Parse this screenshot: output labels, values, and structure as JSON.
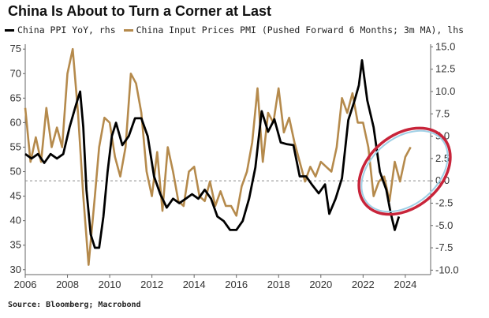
{
  "title": "China Is About to Turn a Corner at Last",
  "source": "Source: Bloomberg; Macrobond",
  "chart_data": {
    "type": "line",
    "title": "China Is About to Turn a Corner at Last",
    "x_ticks": [
      "2006",
      "2008",
      "2010",
      "2012",
      "2014",
      "2016",
      "2018",
      "2020",
      "2022",
      "2024"
    ],
    "xlim": [
      2006,
      2025.2
    ],
    "left_axis": {
      "ticks": [
        "75",
        "70",
        "65",
        "60",
        "55",
        "50",
        "45",
        "40",
        "35",
        "30"
      ],
      "ylim": [
        29,
        76
      ]
    },
    "right_axis": {
      "ticks": [
        "15.0",
        "12.5",
        "10.0",
        "7.5",
        "5.0",
        "2.5",
        "0.0",
        "-2.5",
        "-5.0",
        "-7.5",
        "-10.0"
      ],
      "ylim": [
        -10.5,
        15.3
      ]
    },
    "zero_line_right": 0.0,
    "grid": false,
    "legend_position": "top-left",
    "colors": {
      "ppi": "#000000",
      "pmi": "#b58a4c",
      "circle": "#c8243a",
      "circle_inner": "#9fd0e6"
    },
    "series": [
      {
        "name": "China PPI YoY, rhs",
        "axis": "right",
        "x": [
          2006.0,
          2006.3,
          2006.6,
          2006.9,
          2007.2,
          2007.5,
          2007.8,
          2008.1,
          2008.4,
          2008.6,
          2008.75,
          2008.9,
          2009.1,
          2009.3,
          2009.5,
          2009.7,
          2009.9,
          2010.1,
          2010.3,
          2010.6,
          2010.9,
          2011.2,
          2011.5,
          2011.8,
          2012.1,
          2012.4,
          2012.7,
          2013.0,
          2013.3,
          2013.6,
          2013.9,
          2014.2,
          2014.5,
          2014.8,
          2015.1,
          2015.4,
          2015.7,
          2016.0,
          2016.3,
          2016.6,
          2016.9,
          2017.2,
          2017.5,
          2017.8,
          2018.1,
          2018.4,
          2018.7,
          2019.0,
          2019.3,
          2019.6,
          2019.9,
          2020.2,
          2020.4,
          2020.7,
          2021.0,
          2021.3,
          2021.6,
          2021.8,
          2021.95,
          2022.2,
          2022.5,
          2022.8,
          2023.1,
          2023.3,
          2023.5,
          2023.7
        ],
        "y": [
          3.0,
          2.5,
          3.0,
          2.0,
          3.0,
          2.5,
          3.0,
          6.0,
          8.5,
          10.0,
          6.0,
          -1.0,
          -6.0,
          -7.5,
          -7.5,
          -4.0,
          1.0,
          5.0,
          6.5,
          4.0,
          5.0,
          7.0,
          7.0,
          5.0,
          0.5,
          -1.5,
          -3.0,
          -2.0,
          -2.5,
          -2.0,
          -1.5,
          -2.0,
          -1.0,
          -2.0,
          -4.0,
          -4.5,
          -5.5,
          -5.5,
          -4.5,
          -2.0,
          1.5,
          7.8,
          5.5,
          6.9,
          4.3,
          4.1,
          4.0,
          0.5,
          0.5,
          -0.5,
          -1.4,
          -0.4,
          -3.7,
          -2.0,
          0.3,
          6.8,
          9.0,
          10.7,
          13.5,
          9.0,
          6.0,
          1.0,
          -1.0,
          -3.5,
          -5.5,
          -4.0
        ]
      },
      {
        "name": "China Input Prices PMI (Pushed Forward 6 Months; 3m MA), lhs",
        "axis": "left",
        "x": [
          2006.0,
          2006.25,
          2006.5,
          2006.75,
          2007.0,
          2007.25,
          2007.5,
          2007.75,
          2008.0,
          2008.25,
          2008.5,
          2008.75,
          2009.0,
          2009.15,
          2009.3,
          2009.5,
          2009.75,
          2010.0,
          2010.25,
          2010.5,
          2010.75,
          2011.0,
          2011.25,
          2011.5,
          2011.75,
          2012.0,
          2012.25,
          2012.5,
          2012.75,
          2013.0,
          2013.25,
          2013.5,
          2013.75,
          2014.0,
          2014.25,
          2014.5,
          2014.75,
          2015.0,
          2015.25,
          2015.5,
          2015.75,
          2016.0,
          2016.25,
          2016.5,
          2016.75,
          2017.0,
          2017.25,
          2017.5,
          2017.75,
          2018.0,
          2018.25,
          2018.5,
          2018.75,
          2019.0,
          2019.25,
          2019.5,
          2019.75,
          2020.0,
          2020.25,
          2020.5,
          2020.75,
          2021.0,
          2021.25,
          2021.5,
          2021.75,
          2022.0,
          2022.25,
          2022.5,
          2022.75,
          2023.0,
          2023.25,
          2023.5,
          2023.75,
          2024.0,
          2024.25
        ],
        "y": [
          63.0,
          52.0,
          57.0,
          52.0,
          63.0,
          55.0,
          59.0,
          55.0,
          70.0,
          75.0,
          62.0,
          45.0,
          31.0,
          38.0,
          45.0,
          55.0,
          61.0,
          60.0,
          53.0,
          49.0,
          55.0,
          70.0,
          68.0,
          62.0,
          50.0,
          45.0,
          54.0,
          42.0,
          55.0,
          50.0,
          44.0,
          43.0,
          50.0,
          51.0,
          45.0,
          44.0,
          48.0,
          43.0,
          46.0,
          43.0,
          43.0,
          41.0,
          47.0,
          50.0,
          56.0,
          67.0,
          52.0,
          62.0,
          60.0,
          67.0,
          58.0,
          61.0,
          56.0,
          52.0,
          48.0,
          51.0,
          49.0,
          52.0,
          51.0,
          50.0,
          55.0,
          65.0,
          62.0,
          66.0,
          60.0,
          60.0,
          55.0,
          45.0,
          48.0,
          49.0,
          44.0,
          52.0,
          48.0,
          53.0,
          55.0
        ]
      }
    ]
  }
}
